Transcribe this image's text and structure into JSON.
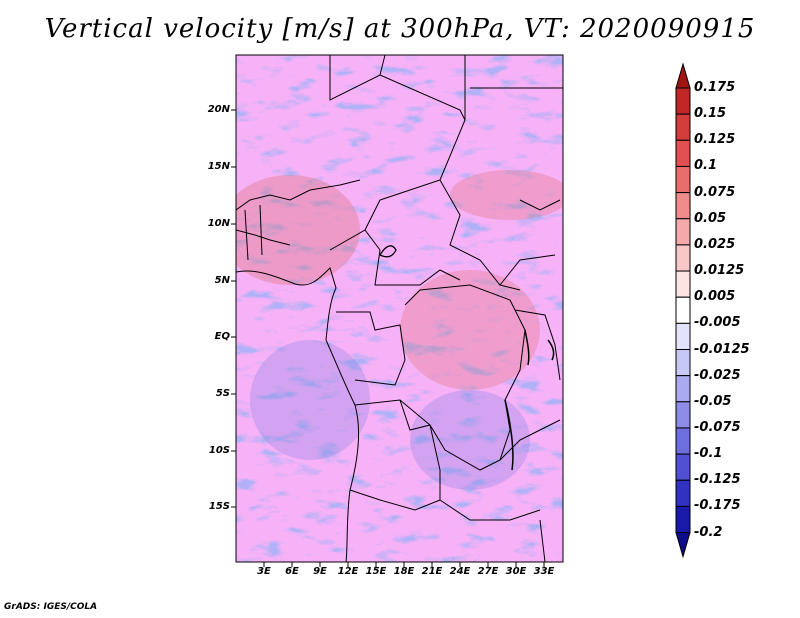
{
  "title": "Vertical velocity [m/s] at 300hPa, VT: 2020090915",
  "credit": "GrADS: IGES/COLA",
  "map": {
    "lat_labels": [
      "20N",
      "15N",
      "10N",
      "5N",
      "EQ",
      "5S",
      "10S",
      "15S"
    ],
    "lon_labels": [
      "3E",
      "6E",
      "9E",
      "12E",
      "15E",
      "18E",
      "21E",
      "24E",
      "27E",
      "30E",
      "33E"
    ]
  },
  "colorbar": {
    "labels": [
      "0.175",
      "0.15",
      "0.125",
      "0.1",
      "0.075",
      "0.05",
      "0.025",
      "0.0125",
      "0.005",
      "-0.005",
      "-0.0125",
      "-0.025",
      "-0.05",
      "-0.075",
      "-0.1",
      "-0.125",
      "-0.175",
      "-0.2"
    ],
    "colors": [
      "#a01414",
      "#c02828",
      "#d23c3c",
      "#e05050",
      "#e86e6e",
      "#f08c8c",
      "#f4aaaa",
      "#f8c8c8",
      "#fce4e4",
      "#ffffff",
      "#e2e2fa",
      "#c8c8f4",
      "#aaaaee",
      "#8c8ce6",
      "#6e6ede",
      "#5050d0",
      "#3232c0",
      "#1a1aa8",
      "#0c0c8c"
    ]
  }
}
